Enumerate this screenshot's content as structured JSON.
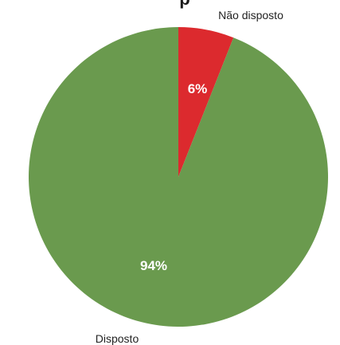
{
  "chart_data": {
    "type": "pie",
    "title_fragment": "p",
    "categories": [
      "Não disposto",
      "Disposto"
    ],
    "values": [
      6,
      94
    ],
    "value_labels": [
      "6%",
      "94%"
    ],
    "colors": [
      "#dc2a2e",
      "#6a9a4e"
    ]
  }
}
